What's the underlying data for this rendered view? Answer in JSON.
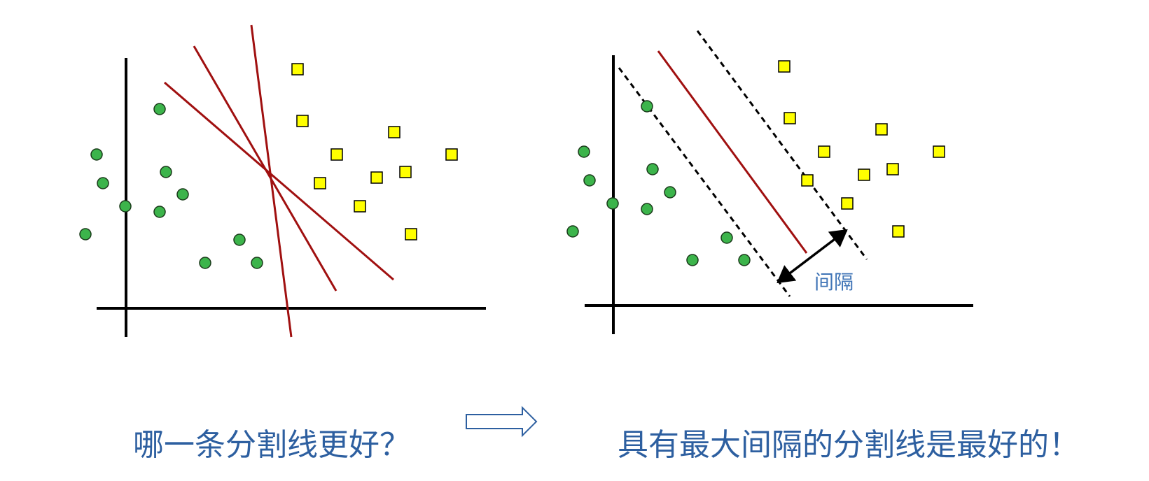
{
  "left_panel": {
    "circles": [
      [
        138,
        221
      ],
      [
        147,
        262
      ],
      [
        122,
        335
      ],
      [
        179,
        295
      ],
      [
        228,
        156
      ],
      [
        237,
        246
      ],
      [
        261,
        278
      ],
      [
        228,
        303
      ],
      [
        342,
        343
      ],
      [
        293,
        376
      ],
      [
        367,
        376
      ]
    ],
    "squares": [
      [
        425,
        99
      ],
      [
        432,
        173
      ],
      [
        481,
        221
      ],
      [
        457,
        262
      ],
      [
        514,
        295
      ],
      [
        538,
        254
      ],
      [
        563,
        189
      ],
      [
        579,
        246
      ],
      [
        645,
        221
      ],
      [
        587,
        335
      ]
    ],
    "candidate_lines": [
      {
        "name": "candidate-line-1",
        "from": [
          235,
          118
        ],
        "to": [
          562,
          400
        ]
      },
      {
        "name": "candidate-line-2",
        "from": [
          277,
          66
        ],
        "to": [
          480,
          416
        ]
      },
      {
        "name": "candidate-line-3",
        "from": [
          359,
          36
        ],
        "to": [
          416,
          482
        ]
      }
    ]
  },
  "right_panel": {
    "circles": [
      [
        834,
        217
      ],
      [
        842,
        258
      ],
      [
        818,
        331
      ],
      [
        875,
        291
      ],
      [
        924,
        152
      ],
      [
        932,
        242
      ],
      [
        957,
        275
      ],
      [
        924,
        299
      ],
      [
        1038,
        340
      ],
      [
        989,
        372
      ],
      [
        1063,
        372
      ]
    ],
    "squares": [
      [
        1120,
        95
      ],
      [
        1128,
        169
      ],
      [
        1177,
        217
      ],
      [
        1153,
        258
      ],
      [
        1210,
        291
      ],
      [
        1234,
        250
      ],
      [
        1259,
        185
      ],
      [
        1275,
        242
      ],
      [
        1341,
        217
      ],
      [
        1283,
        331
      ]
    ],
    "separator": {
      "from": [
        940,
        73
      ],
      "to": [
        1152,
        362
      ]
    },
    "margin_lines": [
      {
        "name": "margin-line-lower",
        "from": [
          884,
          97
        ],
        "to": [
          1128,
          424
        ]
      },
      {
        "name": "margin-line-upper",
        "from": [
          996,
          44
        ],
        "to": [
          1238,
          371
        ]
      }
    ],
    "margin_arrow": {
      "from": [
        1112,
        403
      ],
      "to": [
        1208,
        330
      ]
    },
    "margin_label": "间隔"
  },
  "captions": {
    "left": "哪一条分割线更好？",
    "right": "具有最大间隔的分割线是最好的！"
  },
  "colors": {
    "circle_fill": "#3cb44b",
    "square_fill": "#ffff00",
    "line_red": "#a01010",
    "axis": "#000000",
    "caption": "#2d5fa0",
    "arrow_outline": "#2d5fa0"
  }
}
